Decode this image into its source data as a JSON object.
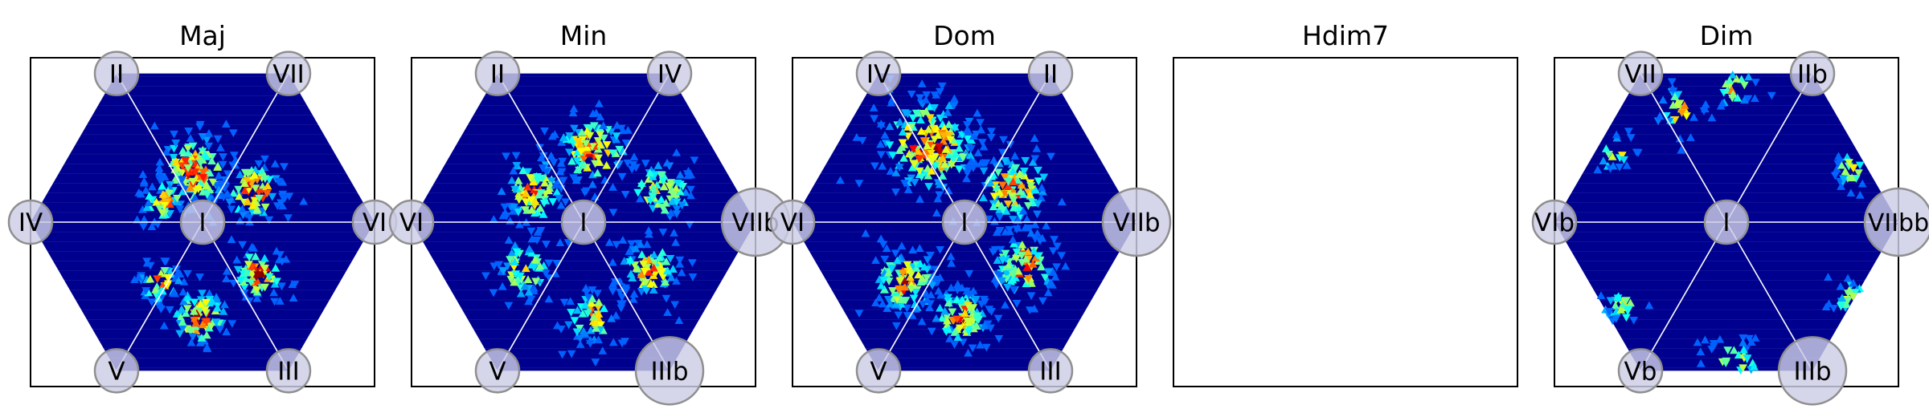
{
  "colors": {
    "background": "#ffffff",
    "frame": "#000000",
    "hex_fill": "#00008f",
    "grid_lines": "#ffffff",
    "node_fill": "#cdcde6",
    "node_stroke": "#8f8f8f",
    "colormap": "jet"
  },
  "chart_data": [
    {
      "type": "heatmap",
      "title": "Maj",
      "center_label": "I",
      "vertex_labels": {
        "top_left": "II",
        "top_right": "VII",
        "left": "IV",
        "right": "VI",
        "bottom_left": "V",
        "bottom_right": "III"
      },
      "clusters": [
        {
          "u": -0.05,
          "v": 0.3,
          "spread": 0.13,
          "count": 150,
          "peak": 0.9
        },
        {
          "u": 0.3,
          "v": 0.18,
          "spread": 0.1,
          "count": 90,
          "peak": 0.95
        },
        {
          "u": -0.22,
          "v": 0.12,
          "spread": 0.08,
          "count": 50,
          "peak": 0.8
        },
        {
          "u": 0.33,
          "v": -0.3,
          "spread": 0.09,
          "count": 80,
          "peak": 0.95
        },
        {
          "u": -0.02,
          "v": -0.55,
          "spread": 0.1,
          "count": 90,
          "peak": 0.95
        },
        {
          "u": -0.25,
          "v": -0.35,
          "spread": 0.08,
          "count": 50,
          "peak": 0.75
        }
      ]
    },
    {
      "type": "heatmap",
      "title": "Min",
      "center_label": "I",
      "vertex_labels": {
        "top_left": "II",
        "top_right": "IV",
        "left": "VI",
        "right": "VIIb",
        "bottom_left": "V",
        "bottom_right": "IIIb"
      },
      "clusters": [
        {
          "u": 0.05,
          "v": 0.42,
          "spread": 0.13,
          "count": 110,
          "peak": 0.85
        },
        {
          "u": -0.3,
          "v": 0.18,
          "spread": 0.12,
          "count": 100,
          "peak": 0.8
        },
        {
          "u": 0.45,
          "v": 0.18,
          "spread": 0.12,
          "count": 80,
          "peak": 0.7
        },
        {
          "u": -0.35,
          "v": -0.28,
          "spread": 0.11,
          "count": 70,
          "peak": 0.7
        },
        {
          "u": 0.05,
          "v": -0.55,
          "spread": 0.1,
          "count": 70,
          "peak": 0.75
        },
        {
          "u": 0.38,
          "v": -0.28,
          "spread": 0.11,
          "count": 90,
          "peak": 0.8
        }
      ]
    },
    {
      "type": "heatmap",
      "title": "Dom",
      "center_label": "I",
      "vertex_labels": {
        "top_left": "IV",
        "top_right": "II",
        "left": "VI",
        "right": "VIIb",
        "bottom_left": "V",
        "bottom_right": "III"
      },
      "clusters": [
        {
          "u": -0.2,
          "v": 0.45,
          "spread": 0.17,
          "count": 220,
          "peak": 0.95
        },
        {
          "u": 0.28,
          "v": 0.2,
          "spread": 0.14,
          "count": 120,
          "peak": 0.8
        },
        {
          "u": -0.35,
          "v": -0.35,
          "spread": 0.12,
          "count": 120,
          "peak": 0.85
        },
        {
          "u": -0.02,
          "v": -0.55,
          "spread": 0.1,
          "count": 100,
          "peak": 0.85
        },
        {
          "u": 0.35,
          "v": -0.25,
          "spread": 0.12,
          "count": 110,
          "peak": 0.85
        }
      ]
    },
    {
      "type": "heatmap",
      "title": "Hdim7",
      "empty": true
    },
    {
      "type": "heatmap",
      "title": "Dim",
      "center_label": "I",
      "vertex_labels": {
        "top_left": "VII",
        "top_right": "IIb",
        "left": "VIb",
        "right": "VIIbb",
        "bottom_left": "Vb",
        "bottom_right": "IIIb"
      },
      "clusters": [
        {
          "u": -0.28,
          "v": 0.65,
          "spread": 0.09,
          "count": 30,
          "peak": 0.75
        },
        {
          "u": 0.05,
          "v": 0.78,
          "spread": 0.08,
          "count": 25,
          "peak": 0.7
        },
        {
          "u": -0.65,
          "v": 0.4,
          "spread": 0.07,
          "count": 20,
          "peak": 0.75
        },
        {
          "u": 0.72,
          "v": 0.3,
          "spread": 0.07,
          "count": 25,
          "peak": 0.65
        },
        {
          "u": -0.6,
          "v": -0.5,
          "spread": 0.08,
          "count": 30,
          "peak": 0.65
        },
        {
          "u": 0.72,
          "v": -0.45,
          "spread": 0.08,
          "count": 30,
          "peak": 0.6
        },
        {
          "u": 0.05,
          "v": -0.82,
          "spread": 0.1,
          "count": 35,
          "peak": 0.65
        }
      ]
    }
  ]
}
